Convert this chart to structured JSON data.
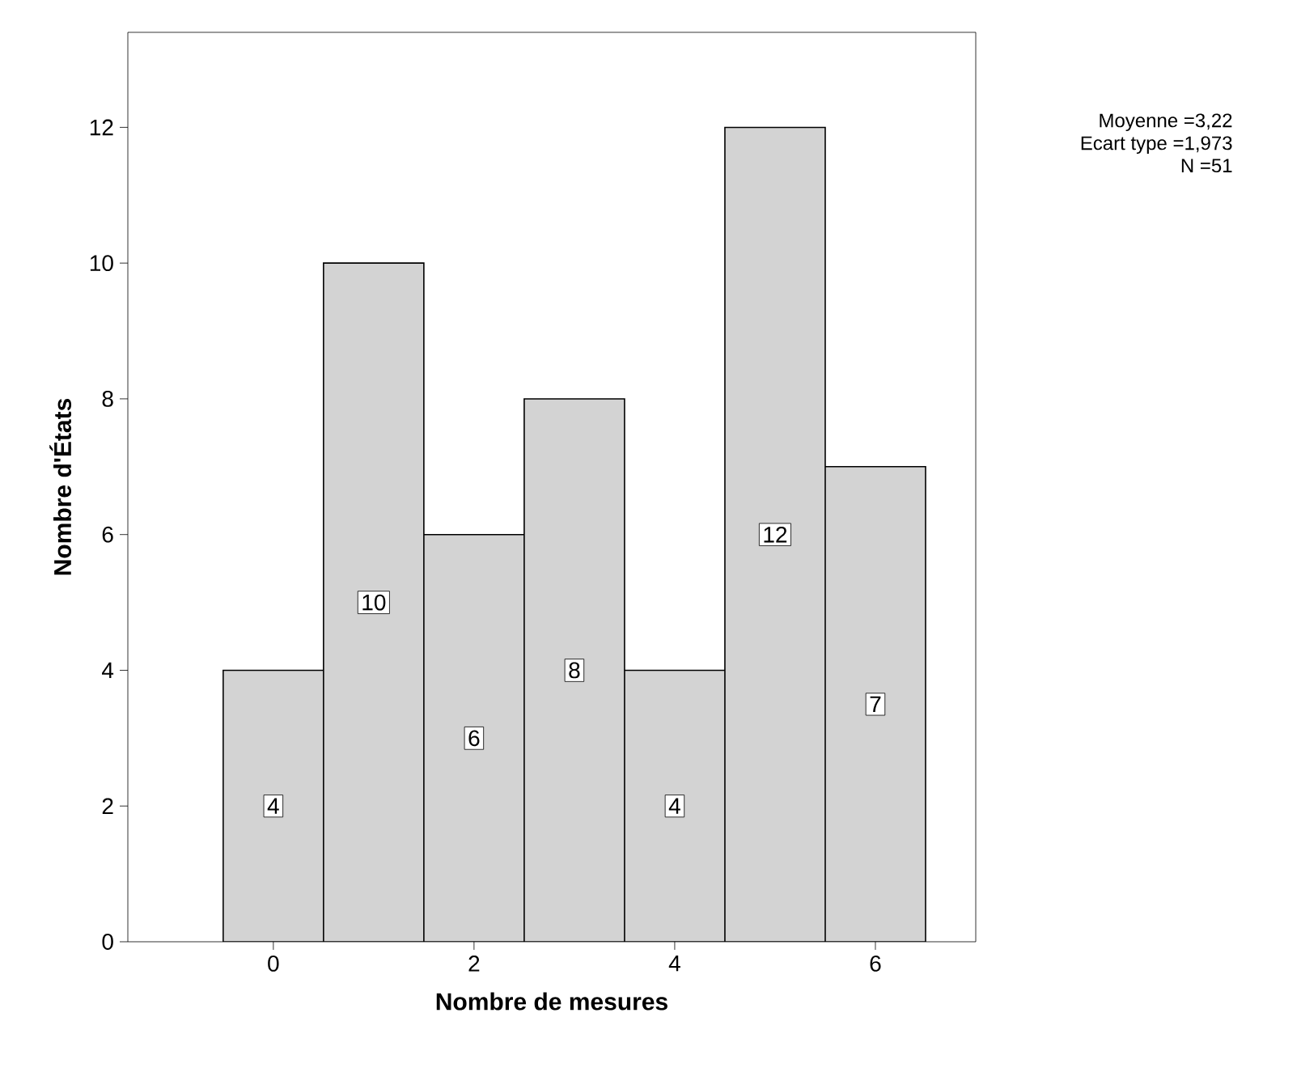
{
  "chart_data": {
    "type": "histogram",
    "xlabel": "Nombre de mesures",
    "ylabel": "Nombre d'États",
    "bins": [
      -0.5,
      0.5,
      1.5,
      2.5,
      3.5,
      4.5,
      5.5,
      6.5
    ],
    "values": [
      4,
      10,
      6,
      8,
      4,
      12,
      7
    ],
    "color": "#d3d3d3",
    "xlim": [
      -1.45,
      7.0
    ],
    "ylim": [
      0,
      13.4
    ],
    "xticks": [
      0,
      2,
      4,
      6
    ],
    "yticks": [
      0,
      2,
      4,
      6,
      8,
      10,
      12
    ],
    "data_labels": true,
    "grid": false,
    "annotations": [
      "Moyenne =3,22",
      "Ecart type =1,973",
      "N =51"
    ]
  }
}
